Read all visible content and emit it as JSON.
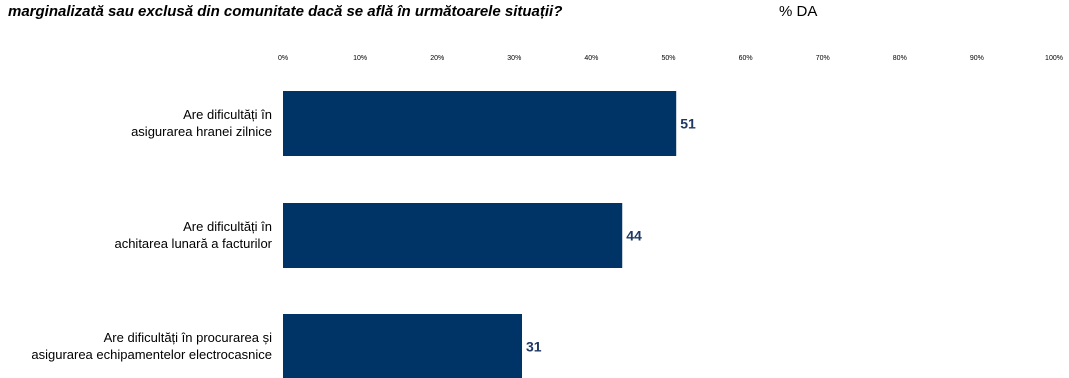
{
  "header": {
    "title": "marginalizată sau exclusă din comunitate dacă se află în următoarele situații?",
    "unit": "% DA"
  },
  "chart_data": {
    "type": "bar",
    "orientation": "horizontal",
    "categories": [
      [
        "Are dificultăți în",
        "asigurarea hranei zilnice"
      ],
      [
        "Are dificultăți în",
        "achitarea lunară a facturilor"
      ],
      [
        "Are dificultăți în procurarea și",
        "asigurarea echipamentelor electrocasnice"
      ]
    ],
    "values": [
      51,
      44,
      31
    ],
    "data_labels": [
      "51",
      "44",
      "31"
    ],
    "xlim": [
      0,
      100
    ],
    "x_ticks": [
      "0%",
      "10%",
      "20%",
      "30%",
      "40%",
      "50%",
      "60%",
      "70%",
      "80%",
      "90%",
      "100%"
    ],
    "grid": false,
    "colors": {
      "bar": "#003366",
      "label": "#1f3864",
      "text": "#000000"
    }
  }
}
